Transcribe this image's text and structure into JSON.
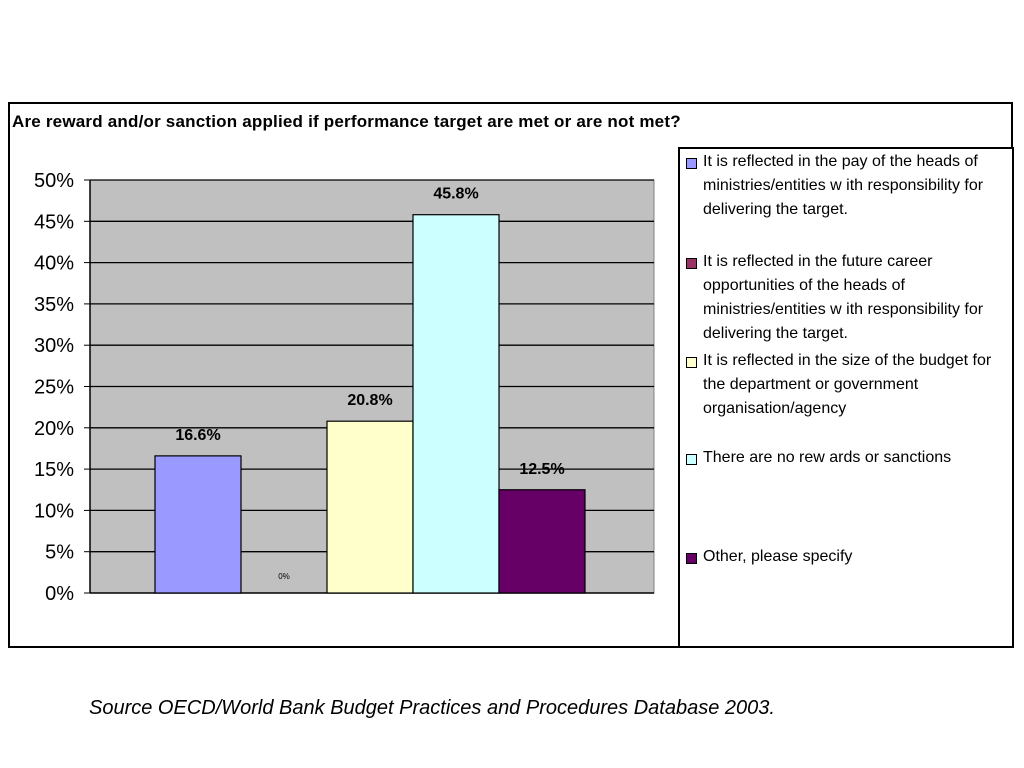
{
  "chart_data": {
    "type": "bar",
    "title": "Are reward and/or sanction applied if performance target are met or are not met?",
    "categories": [
      "It is reflected in the pay of the heads of ministries/entities w ith responsibility for delivering the target.",
      "It is reflected in the future career opportunities of the heads of ministries/entities w ith responsibility for delivering the target.",
      "It is reflected in the size of the budget for the department or government organisation/agency",
      "There are no rew ards or sanctions",
      "Other, please specify"
    ],
    "values": [
      16.6,
      0,
      20.8,
      45.8,
      12.5
    ],
    "data_labels": [
      "16.6%",
      "0%",
      "20.8%",
      "45.8%",
      "12.5%"
    ],
    "colors": [
      "#9999ff",
      "#993366",
      "#ffffcc",
      "#ccffff",
      "#660066"
    ],
    "ylim": [
      0,
      50
    ],
    "yticks": [
      "0%",
      "5%",
      "10%",
      "15%",
      "20%",
      "25%",
      "30%",
      "35%",
      "40%",
      "45%",
      "50%"
    ],
    "xlabel": "",
    "ylabel": "",
    "grid": true,
    "legend_position": "right",
    "plot_background": "#c0c0c0"
  },
  "source": "Source OECD/World Bank Budget Practices and Procedures Database 2003."
}
